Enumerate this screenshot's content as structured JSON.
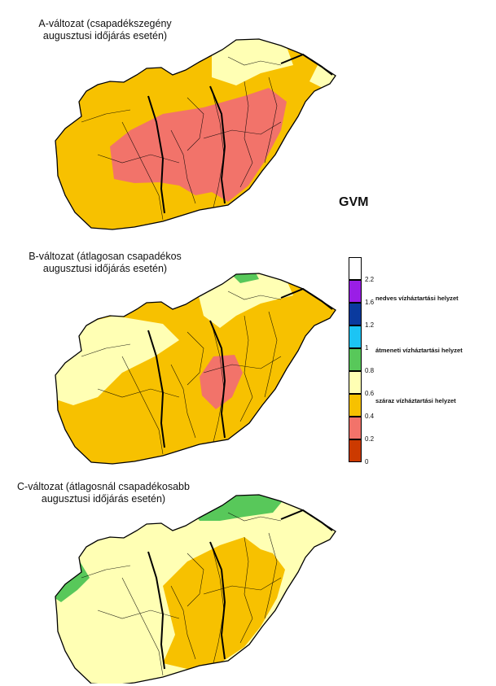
{
  "maps": [
    {
      "id": "a",
      "title_line1": "A-változat (csapadékszegény",
      "title_line2": "augusztusi időjárás esetén)"
    },
    {
      "id": "b",
      "title_line1": "B-változat (átlagosan csapadékos",
      "title_line2": "augusztusi időjárás esetén)"
    },
    {
      "id": "c",
      "title_line1": "C-változat (átlagosnál csapadékosabb",
      "title_line2": "augusztusi időjárás esetén)"
    }
  ],
  "legend": {
    "title": "GVM",
    "ticks": [
      "2.2",
      "1.6",
      "1.2",
      "1",
      "0.8",
      "0.6",
      "0.4",
      "0.2",
      "0"
    ],
    "zones": {
      "wet": "nedves vízháztartási helyzet",
      "transition": "átmeneti vízháztartási helyzet",
      "dry": "száraz vízháztartási helyzet"
    },
    "colors": [
      "#ffffff",
      "#9a1ee6",
      "#0a3a9e",
      "#1cc4f4",
      "#58c85a",
      "#ffffb4",
      "#f7c100",
      "#f2736a",
      "#cc3a00"
    ]
  },
  "colors": {
    "red": "#f2736a",
    "orange": "#f7c100",
    "lightyellow": "#ffffb4",
    "green": "#58c85a",
    "outline": "#000000",
    "river": "#000000"
  }
}
